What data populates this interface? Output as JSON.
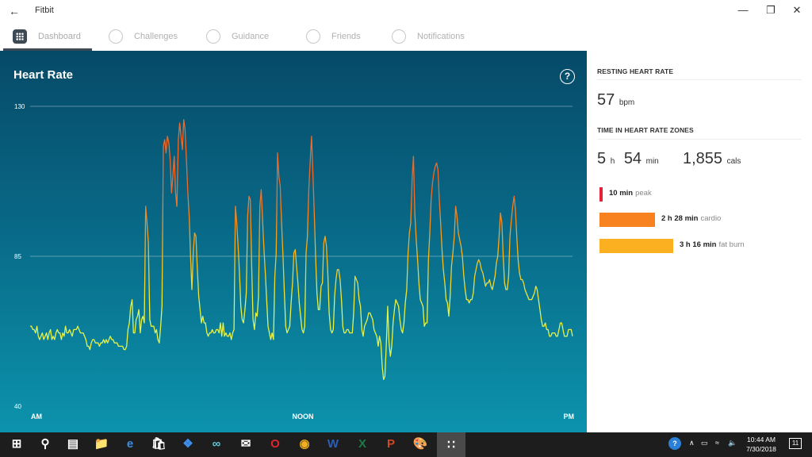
{
  "app": {
    "title": "Fitbit"
  },
  "tabs": [
    {
      "label": "Dashboard",
      "icon": "dashboard-icon",
      "active": true
    },
    {
      "label": "Challenges",
      "icon": "star-badge-icon"
    },
    {
      "label": "Guidance",
      "icon": "compass-icon"
    },
    {
      "label": "Friends",
      "icon": "friends-icon"
    },
    {
      "label": "Notifications",
      "icon": "chat-bubble-icon"
    }
  ],
  "panel": {
    "title": "Heart Rate",
    "help": "?"
  },
  "chart_data": {
    "type": "line",
    "title": "Heart Rate",
    "ylim": [
      40,
      130
    ],
    "yticks": [
      "130",
      "85",
      "40"
    ],
    "xticks": [
      "AM",
      "NOON",
      "PM"
    ],
    "grid": true,
    "colors": {
      "low": "#e5f24a",
      "mid": "#f6b91f",
      "high": "#ef6a2a"
    },
    "values": [
      64,
      64,
      63,
      63,
      62,
      64,
      61,
      60,
      61,
      62,
      60,
      61,
      62,
      60,
      62,
      63,
      60,
      61,
      60,
      62,
      63,
      62,
      62,
      60,
      62,
      61,
      64,
      62,
      62,
      63,
      62,
      61,
      63,
      63,
      63,
      64,
      63,
      62,
      62,
      62,
      61,
      60,
      58,
      58,
      57,
      59,
      60,
      60,
      59,
      59,
      59,
      58,
      59,
      59,
      60,
      59,
      60,
      59,
      60,
      61,
      60,
      60,
      59,
      59,
      59,
      58,
      58,
      58,
      58,
      57,
      57,
      58,
      63,
      65,
      70,
      72,
      62,
      62,
      66,
      67,
      69,
      62,
      66,
      67,
      65,
      100,
      95,
      89,
      66,
      64,
      64,
      64,
      62,
      63,
      60,
      59,
      64,
      70,
      118,
      120,
      116,
      121,
      119,
      114,
      104,
      109,
      115,
      104,
      100,
      120,
      125,
      121,
      117,
      126,
      123,
      114,
      104,
      97,
      85,
      75,
      86,
      92,
      91,
      81,
      73,
      69,
      65,
      67,
      65,
      65,
      62,
      61,
      62,
      62,
      63,
      62,
      62,
      63,
      63,
      62,
      65,
      61,
      65,
      61,
      62,
      61,
      61,
      62,
      60,
      62,
      63,
      100,
      95,
      88,
      80,
      70,
      66,
      65,
      69,
      74,
      97,
      103,
      102,
      82,
      66,
      63,
      68,
      67,
      73,
      100,
      105,
      96,
      87,
      80,
      72,
      64,
      62,
      60,
      62,
      60,
      79,
      86,
      116,
      109,
      106,
      95,
      85,
      74,
      64,
      62,
      63,
      64,
      71,
      77,
      86,
      87,
      82,
      77,
      71,
      67,
      63,
      62,
      64,
      86,
      91,
      105,
      113,
      121,
      110,
      98,
      85,
      74,
      69,
      69,
      76,
      77,
      89,
      91,
      88,
      80,
      68,
      63,
      62,
      63,
      73,
      78,
      81,
      81,
      78,
      72,
      64,
      62,
      62,
      63,
      63,
      62,
      62,
      62,
      68,
      79,
      78,
      77,
      72,
      70,
      63,
      61,
      64,
      65,
      66,
      68,
      68,
      67,
      66,
      63,
      62,
      61,
      58,
      61,
      59,
      52,
      48,
      49,
      58,
      70,
      59,
      55,
      58,
      65,
      69,
      72,
      71,
      70,
      66,
      63,
      62,
      65,
      71,
      75,
      86,
      92,
      95,
      108,
      115,
      98,
      90,
      84,
      77,
      72,
      71,
      70,
      64,
      65,
      65,
      84,
      92,
      102,
      107,
      110,
      112,
      113,
      111,
      102,
      95,
      87,
      81,
      77,
      72,
      71,
      67,
      73,
      82,
      86,
      91,
      100,
      97,
      92,
      90,
      88,
      85,
      79,
      75,
      72,
      72,
      71,
      72,
      72,
      74,
      79,
      81,
      83,
      84,
      83,
      81,
      80,
      78,
      76,
      77,
      77,
      78,
      76,
      75,
      77,
      79,
      83,
      85,
      91,
      98,
      95,
      85,
      77,
      75,
      75,
      79,
      91,
      96,
      100,
      103,
      99,
      91,
      84,
      80,
      78,
      78,
      77,
      75,
      74,
      73,
      72,
      72,
      72,
      73,
      74,
      76,
      75,
      72,
      69,
      66,
      64,
      64,
      65,
      63,
      63,
      61,
      61,
      62,
      62,
      62,
      61,
      61,
      63,
      65,
      65,
      63,
      61,
      61,
      61,
      63,
      63,
      63,
      61
    ]
  },
  "side": {
    "resting_heading": "RESTING HEART RATE",
    "resting_value": "57",
    "resting_unit": "bpm",
    "zones_heading": "TIME IN HEART RATE ZONES",
    "total_h": "5",
    "total_h_unit": "h",
    "total_m": "54",
    "total_m_unit": "min",
    "cals": "1,855",
    "cals_unit": "cals",
    "zones": [
      {
        "time": "10 min",
        "label": "peak",
        "color": "#e8213a",
        "minutes": 10
      },
      {
        "time": "2 h  28 min",
        "label": "cardio",
        "color": "#f7821f",
        "minutes": 148
      },
      {
        "time": "3 h  16 min",
        "label": "fat burn",
        "color": "#fbb022",
        "minutes": 196
      }
    ]
  },
  "taskbar": {
    "icons": [
      "windows-start-icon",
      "search-icon",
      "task-view-icon",
      "file-explorer-icon",
      "edge-icon",
      "store-icon",
      "dropbox-icon",
      "infinity-icon",
      "mail-icon",
      "opera-icon",
      "chrome-icon",
      "word-icon",
      "excel-icon",
      "powerpoint-icon",
      "paint-icon",
      "fitbit-icon"
    ],
    "time": "10:44 AM",
    "date": "7/30/2018",
    "notification_count": "11"
  }
}
